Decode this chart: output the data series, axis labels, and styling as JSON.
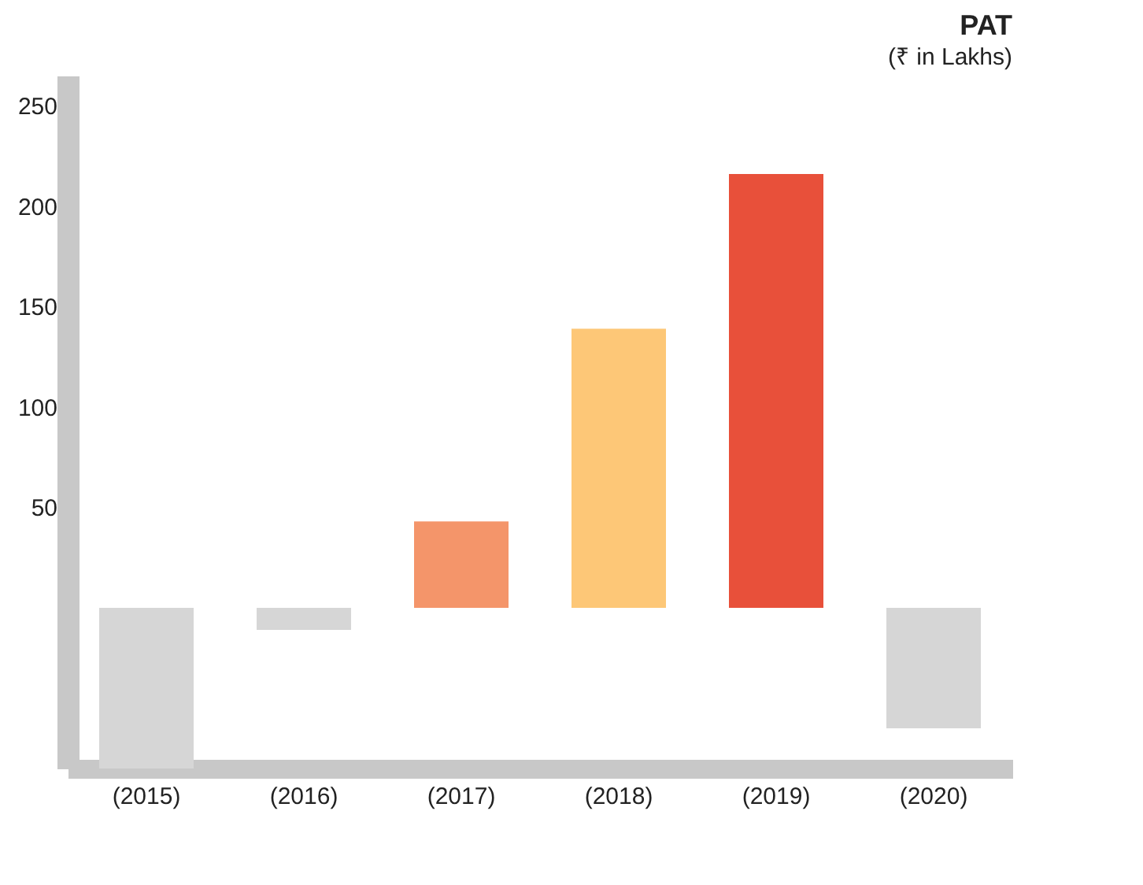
{
  "chart_data": {
    "type": "bar",
    "title": "PAT",
    "subtitle": "(₹ in Lakhs)",
    "categories": [
      "(2015)",
      "(2016)",
      "(2017)",
      "(2018)",
      "(2019)",
      "(2020)"
    ],
    "values": [
      -80,
      -11,
      43,
      139,
      216,
      -60
    ],
    "colors": [
      "#d6d6d6",
      "#d6d6d6",
      "#f4956a",
      "#fdc777",
      "#e8503a",
      "#d6d6d6"
    ],
    "ylim": [
      -80,
      265
    ],
    "yticks": [
      50,
      100,
      150,
      200,
      250
    ],
    "grid": false,
    "legend": false
  }
}
